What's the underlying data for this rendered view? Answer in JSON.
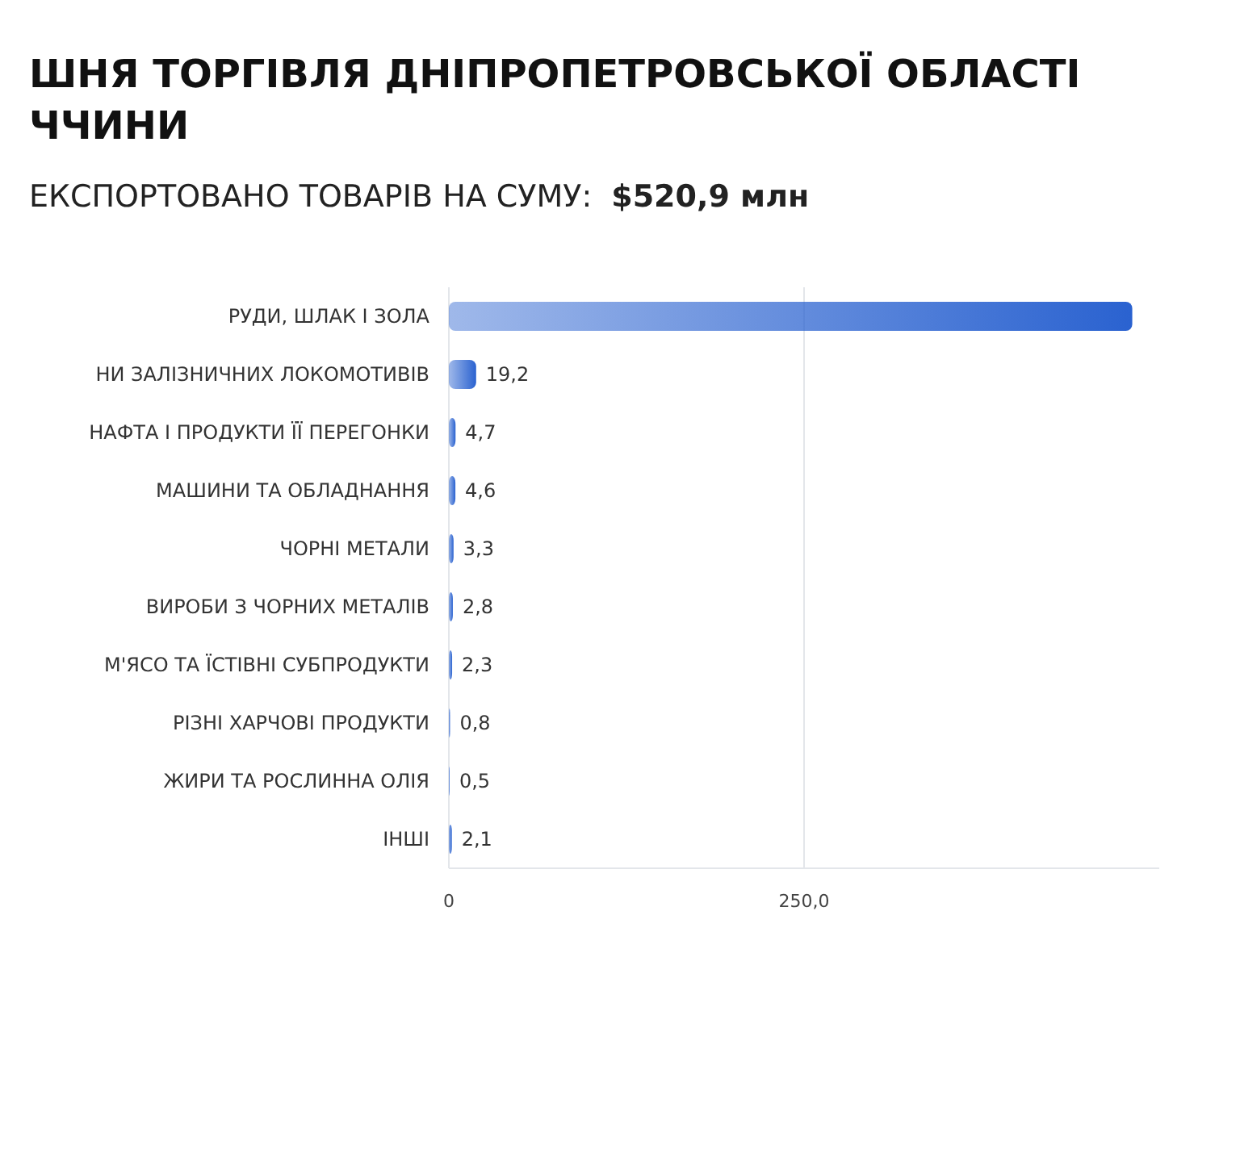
{
  "chart_data": {
    "type": "bar",
    "orientation": "horizontal",
    "title": "ШНЯ ТОРГІВЛЯ ДНІПРОПЕТРОВСЬКОЇ ОБЛАСТІ\nЧЧИНИ",
    "subtitle": "ЕКСПОРТОВАНО ТОВАРІВ НА СУМУ:",
    "annotations": [
      "$520,9 млн"
    ],
    "categories": [
      "РУДИ, ШЛАК І ЗОЛА",
      "НИ ЗАЛІЗНИЧНИХ ЛОКОМОТИВІВ",
      "НАФТА І ПРОДУКТИ ЇЇ ПЕРЕГОНКИ",
      "МАШИНИ ТА ОБЛАДНАННЯ",
      "ЧОРНІ МЕТАЛИ",
      "ВИРОБИ З ЧОРНИХ МЕТАЛІВ",
      "М'ЯСО ТА ЇСТІВНІ СУБПРОДУКТИ",
      "РІЗНІ ХАРЧОВІ ПРОДУКТИ",
      "ЖИРИ ТА РОСЛИННА ОЛІЯ",
      "ІНШІ"
    ],
    "values": [
      481,
      19.2,
      4.7,
      4.6,
      3.3,
      2.8,
      2.3,
      0.8,
      0.5,
      2.1
    ],
    "value_labels": [
      null,
      "19,2",
      "4,7",
      "4,6",
      "3,3",
      "2,8",
      "2,3",
      "0,8",
      "0,5",
      "2,1"
    ],
    "color": "#2a62d0",
    "xlim": [
      0,
      500
    ],
    "xticks": [
      0,
      {
        "value": 250,
        "label": "250,0"
      }
    ],
    "grid": "x"
  }
}
